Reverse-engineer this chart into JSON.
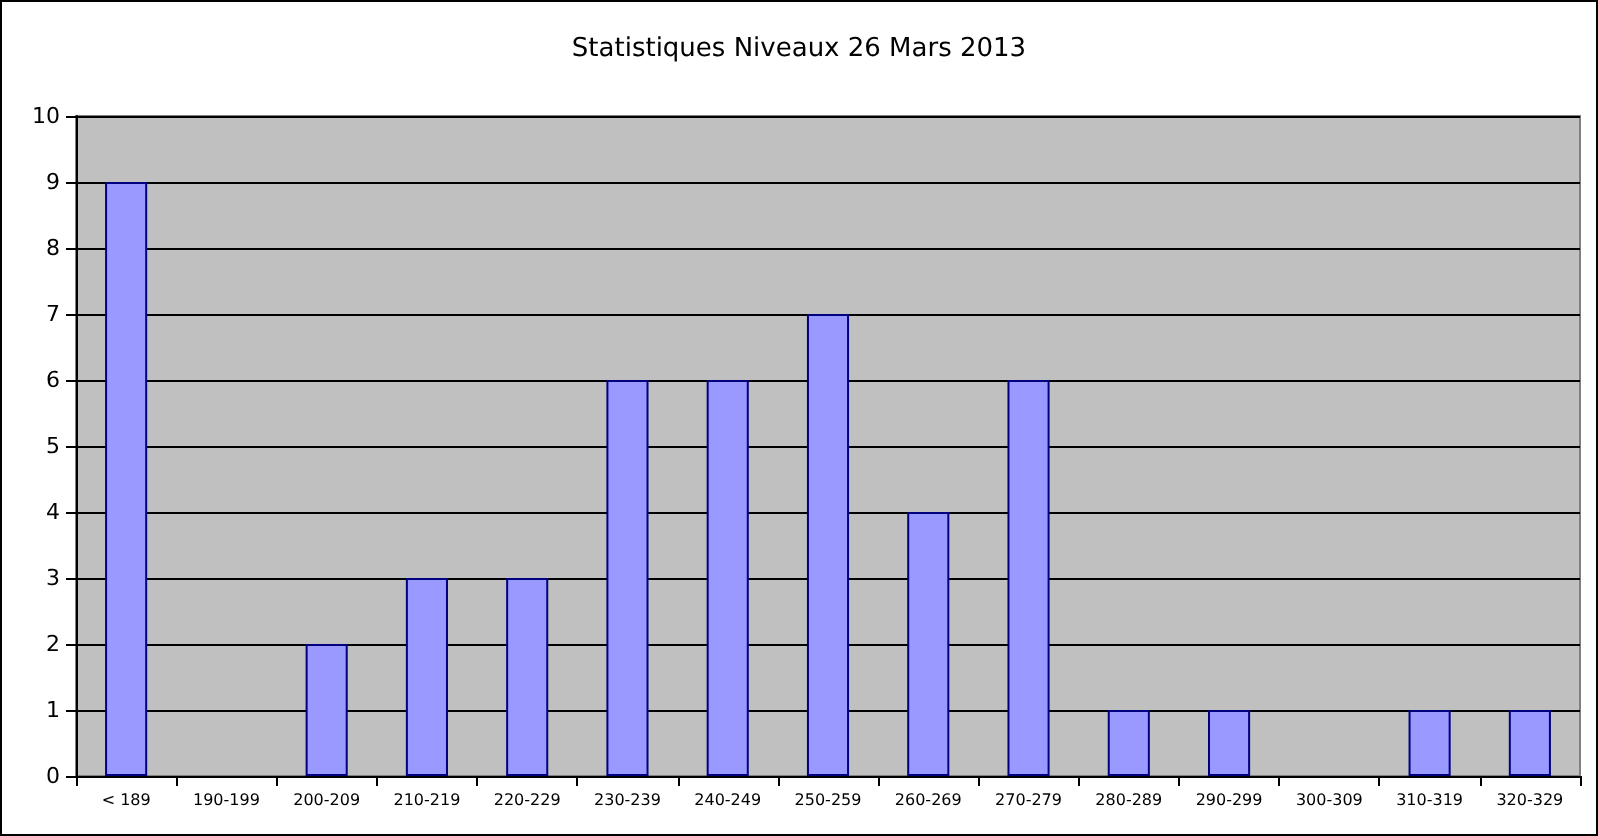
{
  "chart_data": {
    "type": "bar",
    "title": "Statistiques Niveaux 26 Mars 2013",
    "categories": [
      "< 189",
      "190-199",
      "200-209",
      "210-219",
      "220-229",
      "230-239",
      "240-249",
      "250-259",
      "260-269",
      "270-279",
      "280-289",
      "290-299",
      "300-309",
      "310-319",
      "320-329"
    ],
    "values": [
      9,
      0,
      2,
      3,
      3,
      6,
      6,
      7,
      4,
      6,
      1,
      1,
      0,
      1,
      1
    ],
    "color": "#9999ff",
    "ylim": [
      0,
      10
    ],
    "yticks": [
      0,
      1,
      2,
      3,
      4,
      5,
      6,
      7,
      8,
      9,
      10
    ],
    "grid": "y"
  }
}
